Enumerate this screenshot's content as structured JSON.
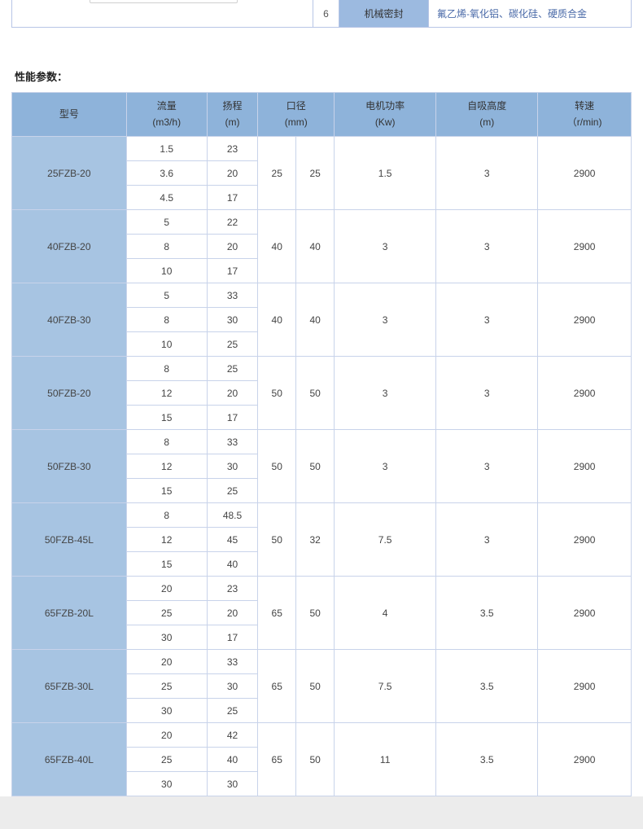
{
  "top_fragment": {
    "number": "6",
    "label": "机械密封",
    "desc": "氟乙烯-氧化铝、碳化硅、硬质合金"
  },
  "section_title": "性能参数：",
  "headers": {
    "model": "型号",
    "flow_l1": "流量",
    "flow_l2": "(m3/h)",
    "head_l1": "扬程",
    "head_l2": "(m)",
    "dia_l1": "口径",
    "dia_l2": "(mm)",
    "power_l1": "电机功率",
    "power_l2": "(Kw)",
    "suction_l1": "自吸高度",
    "suction_l2": "(m)",
    "speed_l1": "转速",
    "speed_l2": "（r/min)"
  },
  "models": [
    {
      "name": "25FZB-20",
      "flows": [
        "1.5",
        "3.6",
        "4.5"
      ],
      "heads": [
        "23",
        "20",
        "17"
      ],
      "dia1": "25",
      "dia2": "25",
      "power": "1.5",
      "suction": "3",
      "speed": "2900"
    },
    {
      "name": "40FZB-20",
      "flows": [
        "5",
        "8",
        "10"
      ],
      "heads": [
        "22",
        "20",
        "17"
      ],
      "dia1": "40",
      "dia2": "40",
      "power": "3",
      "suction": "3",
      "speed": "2900"
    },
    {
      "name": "40FZB-30",
      "flows": [
        "5",
        "8",
        "10"
      ],
      "heads": [
        "33",
        "30",
        "25"
      ],
      "dia1": "40",
      "dia2": "40",
      "power": "3",
      "suction": "3",
      "speed": "2900"
    },
    {
      "name": "50FZB-20",
      "flows": [
        "8",
        "12",
        "15"
      ],
      "heads": [
        "25",
        "20",
        "17"
      ],
      "dia1": "50",
      "dia2": "50",
      "power": "3",
      "suction": "3",
      "speed": "2900"
    },
    {
      "name": "50FZB-30",
      "flows": [
        "8",
        "12",
        "15"
      ],
      "heads": [
        "33",
        "30",
        "25"
      ],
      "dia1": "50",
      "dia2": "50",
      "power": "3",
      "suction": "3",
      "speed": "2900"
    },
    {
      "name": "50FZB-45L",
      "flows": [
        "8",
        "12",
        "15"
      ],
      "heads": [
        "48.5",
        "45",
        "40"
      ],
      "dia1": "50",
      "dia2": "32",
      "power": "7.5",
      "suction": "3",
      "speed": "2900"
    },
    {
      "name": "65FZB-20L",
      "flows": [
        "20",
        "25",
        "30"
      ],
      "heads": [
        "23",
        "20",
        "17"
      ],
      "dia1": "65",
      "dia2": "50",
      "power": "4",
      "suction": "3.5",
      "speed": "2900"
    },
    {
      "name": "65FZB-30L",
      "flows": [
        "20",
        "25",
        "30"
      ],
      "heads": [
        "33",
        "30",
        "25"
      ],
      "dia1": "65",
      "dia2": "50",
      "power": "7.5",
      "suction": "3.5",
      "speed": "2900"
    },
    {
      "name": "65FZB-40L",
      "flows": [
        "20",
        "25",
        "30"
      ],
      "heads": [
        "42",
        "40",
        "30"
      ],
      "dia1": "65",
      "dia2": "50",
      "power": "11",
      "suction": "3.5",
      "speed": "2900"
    }
  ],
  "colors": {
    "header_bg": "#8eb3da",
    "model_bg": "#a7c4e2",
    "border": "#c8d3ea"
  }
}
